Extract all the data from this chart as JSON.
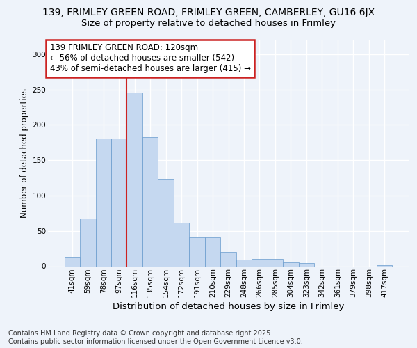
{
  "title_line1": "139, FRIMLEY GREEN ROAD, FRIMLEY GREEN, CAMBERLEY, GU16 6JX",
  "title_line2": "Size of property relative to detached houses in Frimley",
  "xlabel": "Distribution of detached houses by size in Frimley",
  "ylabel": "Number of detached properties",
  "categories": [
    "41sqm",
    "59sqm",
    "78sqm",
    "97sqm",
    "116sqm",
    "135sqm",
    "154sqm",
    "172sqm",
    "191sqm",
    "210sqm",
    "229sqm",
    "248sqm",
    "266sqm",
    "285sqm",
    "304sqm",
    "323sqm",
    "342sqm",
    "361sqm",
    "379sqm",
    "398sqm",
    "417sqm"
  ],
  "values": [
    13,
    67,
    181,
    181,
    246,
    183,
    124,
    62,
    41,
    41,
    20,
    9,
    10,
    10,
    5,
    4,
    0,
    0,
    0,
    0,
    1
  ],
  "bar_color": "#c5d8f0",
  "bar_edge_color": "#6699cc",
  "vline_x": 3.5,
  "vline_color": "#cc2222",
  "annotation_text": "139 FRIMLEY GREEN ROAD: 120sqm\n← 56% of detached houses are smaller (542)\n43% of semi-detached houses are larger (415) →",
  "annotation_box_facecolor": "#ffffff",
  "annotation_box_edgecolor": "#cc2222",
  "ylim": [
    0,
    320
  ],
  "yticks": [
    0,
    50,
    100,
    150,
    200,
    250,
    300
  ],
  "bg_color": "#eef3fa",
  "grid_color": "#ffffff",
  "footnote": "Contains HM Land Registry data © Crown copyright and database right 2025.\nContains public sector information licensed under the Open Government Licence v3.0.",
  "title_fontsize": 10.0,
  "subtitle_fontsize": 9.5,
  "ylabel_fontsize": 8.5,
  "xlabel_fontsize": 9.5,
  "tick_fontsize": 7.5,
  "annot_fontsize": 8.5,
  "footnote_fontsize": 7.0
}
